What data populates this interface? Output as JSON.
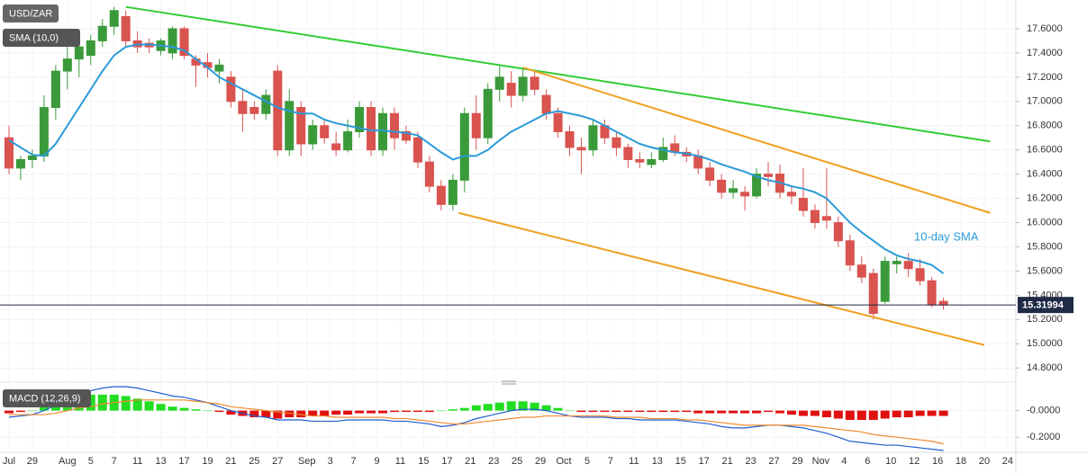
{
  "chart_data": [
    {
      "type": "candlestick",
      "title": "USD/ZAR",
      "indicator_label": "SMA (10,0)",
      "open": [
        16.7,
        16.45,
        16.52,
        16.55,
        16.95,
        17.25,
        17.35,
        17.38,
        17.5,
        17.62,
        17.7,
        17.5,
        17.48,
        17.42,
        17.4,
        17.6,
        17.35,
        17.32,
        17.25,
        17.2,
        17.0,
        16.95,
        16.9,
        17.25,
        16.6,
        16.95,
        16.65,
        16.8,
        16.65,
        16.6,
        16.75,
        16.95,
        16.6,
        16.9,
        16.75,
        16.7,
        16.5,
        16.3,
        16.15,
        16.35,
        16.9,
        16.7,
        17.1,
        17.15,
        17.05,
        17.2,
        17.05,
        16.9,
        16.75,
        16.62,
        16.6,
        16.8,
        16.7,
        16.62,
        16.52,
        16.48,
        16.52,
        16.65,
        16.58,
        16.55,
        16.45,
        16.35,
        16.25,
        16.25,
        16.22,
        16.4,
        16.4,
        16.25,
        16.2,
        16.1,
        16.05,
        16.0,
        15.85,
        15.65,
        15.58,
        15.35,
        15.66,
        15.68,
        15.62,
        15.52,
        15.35
      ],
      "high": [
        16.8,
        16.55,
        16.6,
        17.05,
        17.3,
        17.45,
        17.5,
        17.55,
        17.68,
        17.78,
        17.75,
        17.58,
        17.52,
        17.52,
        17.62,
        17.62,
        17.38,
        17.4,
        17.35,
        17.25,
        17.1,
        17.0,
        17.1,
        17.3,
        17.1,
        17.0,
        16.85,
        16.85,
        16.75,
        16.85,
        17.0,
        17.0,
        16.95,
        16.95,
        16.8,
        16.75,
        16.55,
        16.35,
        16.4,
        16.95,
        17.05,
        17.15,
        17.3,
        17.25,
        17.28,
        17.25,
        17.1,
        16.95,
        16.8,
        16.7,
        16.85,
        16.85,
        16.75,
        16.65,
        16.58,
        16.58,
        16.7,
        16.72,
        16.62,
        16.6,
        16.5,
        16.4,
        16.35,
        16.3,
        16.45,
        16.5,
        16.48,
        16.3,
        16.45,
        16.15,
        16.45,
        16.05,
        15.9,
        15.72,
        15.62,
        15.72,
        15.72,
        15.75,
        15.7,
        15.55,
        15.38
      ],
      "low": [
        16.4,
        16.35,
        16.45,
        16.5,
        16.85,
        17.1,
        17.2,
        17.3,
        17.45,
        17.55,
        17.45,
        17.4,
        17.4,
        17.38,
        17.35,
        17.35,
        17.12,
        17.2,
        17.15,
        16.95,
        16.75,
        16.85,
        16.85,
        16.55,
        16.55,
        16.55,
        16.6,
        16.65,
        16.55,
        16.58,
        16.7,
        16.55,
        16.55,
        16.6,
        16.65,
        16.45,
        16.25,
        16.1,
        16.1,
        16.25,
        16.6,
        16.65,
        17.0,
        16.95,
        17.0,
        17.05,
        16.85,
        16.7,
        16.55,
        16.4,
        16.55,
        16.65,
        16.55,
        16.45,
        16.45,
        16.45,
        16.5,
        16.55,
        16.5,
        16.4,
        16.3,
        16.2,
        16.2,
        16.1,
        16.2,
        16.3,
        16.2,
        16.15,
        16.05,
        15.95,
        15.95,
        15.8,
        15.6,
        15.5,
        15.2,
        15.33,
        15.58,
        15.55,
        15.48,
        15.3,
        15.28
      ],
      "close": [
        16.45,
        16.52,
        16.55,
        16.95,
        17.25,
        17.35,
        17.45,
        17.5,
        17.62,
        17.75,
        17.5,
        17.45,
        17.45,
        17.5,
        17.6,
        17.38,
        17.3,
        17.28,
        17.3,
        17.0,
        16.9,
        16.9,
        17.05,
        16.6,
        17.0,
        16.65,
        16.8,
        16.7,
        16.6,
        16.75,
        16.95,
        16.6,
        16.9,
        16.7,
        16.68,
        16.5,
        16.3,
        16.15,
        16.35,
        16.9,
        16.7,
        17.1,
        17.2,
        17.05,
        17.2,
        17.1,
        16.9,
        16.75,
        16.62,
        16.6,
        16.8,
        16.7,
        16.62,
        16.52,
        16.5,
        16.52,
        16.62,
        16.58,
        16.55,
        16.45,
        16.35,
        16.25,
        16.28,
        16.22,
        16.4,
        16.38,
        16.25,
        16.22,
        16.1,
        16.0,
        16.02,
        15.85,
        15.65,
        15.55,
        15.25,
        15.68,
        15.68,
        15.62,
        15.52,
        15.32,
        15.31994
      ],
      "up_color": "#3a9a3a",
      "down_color": "#d9534f",
      "sma": {
        "color": "#2b9ad8",
        "values": [
          16.68,
          16.62,
          16.56,
          16.55,
          16.65,
          16.8,
          16.95,
          17.1,
          17.25,
          17.38,
          17.45,
          17.47,
          17.47,
          17.46,
          17.45,
          17.42,
          17.35,
          17.28,
          17.2,
          17.15,
          17.1,
          17.05,
          17.0,
          16.95,
          16.92,
          16.9,
          16.9,
          16.85,
          16.82,
          16.8,
          16.78,
          16.76,
          16.76,
          16.75,
          16.74,
          16.72,
          16.65,
          16.58,
          16.52,
          16.55,
          16.55,
          16.6,
          16.68,
          16.75,
          16.8,
          16.85,
          16.9,
          16.92,
          16.9,
          16.88,
          16.85,
          16.8,
          16.75,
          16.7,
          16.65,
          16.62,
          16.6,
          16.58,
          16.57,
          16.55,
          16.52,
          16.48,
          16.45,
          16.42,
          16.38,
          16.35,
          16.33,
          16.3,
          16.28,
          16.25,
          16.2,
          16.1,
          16.0,
          15.92,
          15.85,
          15.78,
          15.73,
          15.7,
          15.68,
          15.65,
          15.58
        ]
      },
      "sma_annotation": "10-day SMA",
      "last_price": 15.31994,
      "last_price_color": "#1f2b46",
      "trend_lines": [
        {
          "color": "#33cc33",
          "points": [
            [
              10,
              17.78
            ],
            [
              84,
              16.67
            ]
          ]
        },
        {
          "color": "#f0a020",
          "points": [
            [
              44,
              17.28
            ],
            [
              84,
              16.08
            ]
          ]
        },
        {
          "color": "#f0a020",
          "points": [
            [
              38.5,
              16.08
            ],
            [
              83.5,
              14.99
            ]
          ]
        }
      ],
      "xlim": [
        -0.77,
        86.2
      ],
      "xticks": [
        {
          "value": 0,
          "label": "Jul"
        },
        {
          "value": 2,
          "label": "29"
        },
        {
          "value": 5,
          "label": "Aug"
        },
        {
          "value": 7,
          "label": "5"
        },
        {
          "value": 9,
          "label": "7"
        },
        {
          "value": 11,
          "label": "11"
        },
        {
          "value": 13,
          "label": "13"
        },
        {
          "value": 15,
          "label": "17"
        },
        {
          "value": 17,
          "label": "19"
        },
        {
          "value": 19,
          "label": "21"
        },
        {
          "value": 21,
          "label": "25"
        },
        {
          "value": 23,
          "label": "27"
        },
        {
          "value": 25.5,
          "label": "Sep"
        },
        {
          "value": 27.5,
          "label": "3"
        },
        {
          "value": 29.5,
          "label": "7"
        },
        {
          "value": 31.5,
          "label": "9"
        },
        {
          "value": 33.5,
          "label": "11"
        },
        {
          "value": 35.5,
          "label": "15"
        },
        {
          "value": 37.5,
          "label": "17"
        },
        {
          "value": 39.5,
          "label": "21"
        },
        {
          "value": 41.5,
          "label": "23"
        },
        {
          "value": 43.5,
          "label": "25"
        },
        {
          "value": 45.5,
          "label": "29"
        },
        {
          "value": 47.5,
          "label": "Oct"
        },
        {
          "value": 49.5,
          "label": "5"
        },
        {
          "value": 51.5,
          "label": "7"
        },
        {
          "value": 53.5,
          "label": "11"
        },
        {
          "value": 55.5,
          "label": "13"
        },
        {
          "value": 57.5,
          "label": "15"
        },
        {
          "value": 59.5,
          "label": "17"
        },
        {
          "value": 61.5,
          "label": "21"
        },
        {
          "value": 63.5,
          "label": "23"
        },
        {
          "value": 65.5,
          "label": "27"
        },
        {
          "value": 67.5,
          "label": "29"
        },
        {
          "value": 69.5,
          "label": "Nov"
        },
        {
          "value": 71.5,
          "label": "4"
        },
        {
          "value": 73.5,
          "label": "6"
        },
        {
          "value": 75.5,
          "label": "10"
        },
        {
          "value": 77.5,
          "label": "12"
        },
        {
          "value": 79.5,
          "label": "16"
        },
        {
          "value": 81.5,
          "label": "18"
        },
        {
          "value": 83.5,
          "label": "20"
        },
        {
          "value": 85.5,
          "label": "24"
        }
      ],
      "ylim": [
        14.72,
        17.8
      ],
      "yticks": [
        {
          "value": 14.8,
          "label": "14.8000"
        },
        {
          "value": 15.0,
          "label": "15.0000"
        },
        {
          "value": 15.2,
          "label": "15.2000"
        },
        {
          "value": 15.4,
          "label": "15.4000"
        },
        {
          "value": 15.6,
          "label": "15.6000"
        },
        {
          "value": 15.8,
          "label": "15.8000"
        },
        {
          "value": 16.0,
          "label": "16.0000"
        },
        {
          "value": 16.2,
          "label": "16.2000"
        },
        {
          "value": 16.4,
          "label": "16.4000"
        },
        {
          "value": 16.6,
          "label": "16.6000"
        },
        {
          "value": 16.8,
          "label": "16.8000"
        },
        {
          "value": 17.0,
          "label": "17.0000"
        },
        {
          "value": 17.2,
          "label": "17.2000"
        },
        {
          "value": 17.4,
          "label": "17.4000"
        },
        {
          "value": 17.6,
          "label": "17.6000"
        }
      ],
      "grid": true
    },
    {
      "type": "macd",
      "title": "MACD (12,26,9)",
      "histogram": [
        -0.02,
        -0.01,
        0.0,
        0.03,
        0.06,
        0.08,
        0.1,
        0.12,
        0.12,
        0.12,
        0.11,
        0.09,
        0.07,
        0.05,
        0.03,
        0.02,
        0.01,
        0.0,
        -0.01,
        -0.03,
        -0.04,
        -0.05,
        -0.05,
        -0.06,
        -0.05,
        -0.05,
        -0.04,
        -0.04,
        -0.03,
        -0.03,
        -0.02,
        -0.02,
        -0.02,
        -0.01,
        -0.01,
        -0.01,
        -0.01,
        0.0,
        0.01,
        0.02,
        0.04,
        0.05,
        0.06,
        0.07,
        0.07,
        0.06,
        0.04,
        0.02,
        0.0,
        -0.01,
        -0.01,
        -0.01,
        -0.01,
        -0.01,
        -0.01,
        -0.01,
        -0.01,
        -0.01,
        -0.01,
        -0.02,
        -0.02,
        -0.02,
        -0.02,
        -0.02,
        -0.02,
        -0.01,
        -0.02,
        -0.03,
        -0.04,
        -0.04,
        -0.05,
        -0.06,
        -0.07,
        -0.07,
        -0.07,
        -0.06,
        -0.05,
        -0.05,
        -0.04,
        -0.04,
        -0.04
      ],
      "up_color": "#22dd22",
      "down_color": "#e01010",
      "series": [
        {
          "color": "#1f5fd0",
          "values": [
            -0.05,
            -0.04,
            -0.03,
            0.0,
            0.04,
            0.08,
            0.12,
            0.15,
            0.17,
            0.18,
            0.18,
            0.17,
            0.15,
            0.13,
            0.11,
            0.1,
            0.08,
            0.06,
            0.03,
            0.0,
            -0.02,
            -0.04,
            -0.05,
            -0.07,
            -0.07,
            -0.07,
            -0.08,
            -0.08,
            -0.08,
            -0.07,
            -0.07,
            -0.07,
            -0.07,
            -0.08,
            -0.08,
            -0.09,
            -0.1,
            -0.12,
            -0.11,
            -0.09,
            -0.06,
            -0.04,
            -0.02,
            0.0,
            0.01,
            0.01,
            0.0,
            -0.02,
            -0.04,
            -0.05,
            -0.05,
            -0.05,
            -0.06,
            -0.06,
            -0.07,
            -0.07,
            -0.07,
            -0.07,
            -0.08,
            -0.09,
            -0.1,
            -0.12,
            -0.13,
            -0.13,
            -0.12,
            -0.11,
            -0.11,
            -0.12,
            -0.13,
            -0.15,
            -0.17,
            -0.2,
            -0.23,
            -0.24,
            -0.25,
            -0.26,
            -0.26,
            -0.27,
            -0.28,
            -0.29,
            -0.3
          ]
        },
        {
          "color": "#f08a30",
          "values": [
            -0.03,
            -0.03,
            -0.03,
            -0.03,
            -0.02,
            0.0,
            0.02,
            0.03,
            0.05,
            0.06,
            0.07,
            0.08,
            0.08,
            0.08,
            0.08,
            0.08,
            0.07,
            0.06,
            0.05,
            0.03,
            0.02,
            0.01,
            0.0,
            -0.01,
            -0.02,
            -0.03,
            -0.04,
            -0.04,
            -0.05,
            -0.05,
            -0.05,
            -0.05,
            -0.05,
            -0.06,
            -0.06,
            -0.07,
            -0.08,
            -0.09,
            -0.1,
            -0.1,
            -0.09,
            -0.08,
            -0.07,
            -0.06,
            -0.05,
            -0.05,
            -0.04,
            -0.04,
            -0.04,
            -0.04,
            -0.04,
            -0.04,
            -0.05,
            -0.05,
            -0.05,
            -0.06,
            -0.06,
            -0.06,
            -0.07,
            -0.07,
            -0.08,
            -0.09,
            -0.1,
            -0.11,
            -0.11,
            -0.11,
            -0.11,
            -0.11,
            -0.11,
            -0.12,
            -0.13,
            -0.14,
            -0.15,
            -0.16,
            -0.18,
            -0.19,
            -0.2,
            -0.21,
            -0.22,
            -0.23,
            -0.25
          ]
        }
      ],
      "ylim": [
        -0.3,
        0.18
      ],
      "yticks": [
        {
          "value": 0,
          "label": "-0.0000"
        },
        {
          "value": -0.2,
          "label": "-0.2000"
        }
      ],
      "grid": true
    }
  ]
}
